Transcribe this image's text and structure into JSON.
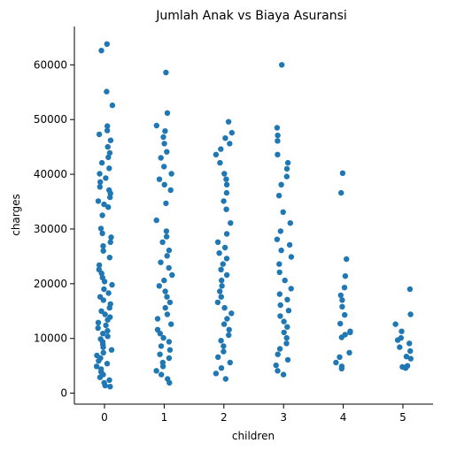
{
  "chart_data": {
    "type": "scatter",
    "title": "Jumlah Anak vs Biaya Asuransi",
    "xlabel": "children",
    "ylabel": "charges",
    "x_ticks": [
      "0",
      "1",
      "2",
      "3",
      "4",
      "5"
    ],
    "y_ticks": [
      "0",
      "10000",
      "20000",
      "30000",
      "40000",
      "50000",
      "60000"
    ],
    "ylim": [
      -2000,
      67000
    ],
    "grid": false,
    "point_color": "#1f77b4",
    "series": [
      {
        "values": [
          {
            "x": 0,
            "y": 63800
          },
          {
            "x": 0,
            "y": 62600
          },
          {
            "x": 0,
            "y": 55100
          },
          {
            "x": 0,
            "y": 52600
          },
          {
            "x": 0,
            "y": 48800
          },
          {
            "x": 0,
            "y": 48000
          },
          {
            "x": 0,
            "y": 47300
          },
          {
            "x": 0,
            "y": 46200
          },
          {
            "x": 0,
            "y": 45000
          },
          {
            "x": 0,
            "y": 43900
          },
          {
            "x": 0,
            "y": 43100
          },
          {
            "x": 0,
            "y": 42100
          },
          {
            "x": 0,
            "y": 41100
          },
          {
            "x": 0,
            "y": 40100
          },
          {
            "x": 0,
            "y": 39300
          },
          {
            "x": 0,
            "y": 38600
          },
          {
            "x": 0,
            "y": 37700
          },
          {
            "x": 0,
            "y": 37100
          },
          {
            "x": 0,
            "y": 36500
          },
          {
            "x": 0,
            "y": 35800
          },
          {
            "x": 0,
            "y": 35100
          },
          {
            "x": 0,
            "y": 34500
          },
          {
            "x": 0,
            "y": 34000
          },
          {
            "x": 0,
            "y": 32500
          },
          {
            "x": 0,
            "y": 30100
          },
          {
            "x": 0,
            "y": 29200
          },
          {
            "x": 0,
            "y": 28500
          },
          {
            "x": 0,
            "y": 27600
          },
          {
            "x": 0,
            "y": 26900
          },
          {
            "x": 0,
            "y": 26000
          },
          {
            "x": 0,
            "y": 24800
          },
          {
            "x": 0,
            "y": 23400
          },
          {
            "x": 0,
            "y": 22600
          },
          {
            "x": 0,
            "y": 21900
          },
          {
            "x": 0,
            "y": 21100
          },
          {
            "x": 0,
            "y": 20400
          },
          {
            "x": 0,
            "y": 19800
          },
          {
            "x": 0,
            "y": 19000
          },
          {
            "x": 0,
            "y": 18300
          },
          {
            "x": 0,
            "y": 17600
          },
          {
            "x": 0,
            "y": 17000
          },
          {
            "x": 0,
            "y": 16300
          },
          {
            "x": 0,
            "y": 15600
          },
          {
            "x": 0,
            "y": 15000
          },
          {
            "x": 0,
            "y": 14400
          },
          {
            "x": 0,
            "y": 13900
          },
          {
            "x": 0,
            "y": 13400
          },
          {
            "x": 0,
            "y": 12900
          },
          {
            "x": 0,
            "y": 12400
          },
          {
            "x": 0,
            "y": 11900
          },
          {
            "x": 0,
            "y": 11400
          },
          {
            "x": 0,
            "y": 10900
          },
          {
            "x": 0,
            "y": 10400
          },
          {
            "x": 0,
            "y": 9900
          },
          {
            "x": 0,
            "y": 9400
          },
          {
            "x": 0,
            "y": 8900
          },
          {
            "x": 0,
            "y": 8400
          },
          {
            "x": 0,
            "y": 7900
          },
          {
            "x": 0,
            "y": 7400
          },
          {
            "x": 0,
            "y": 6900
          },
          {
            "x": 0,
            "y": 6400
          },
          {
            "x": 0,
            "y": 5900
          },
          {
            "x": 0,
            "y": 5400
          },
          {
            "x": 0,
            "y": 4900
          },
          {
            "x": 0,
            "y": 4400
          },
          {
            "x": 0,
            "y": 3900
          },
          {
            "x": 0,
            "y": 3400
          },
          {
            "x": 0,
            "y": 2900
          },
          {
            "x": 0,
            "y": 2400
          },
          {
            "x": 0,
            "y": 1900
          },
          {
            "x": 0,
            "y": 1400
          },
          {
            "x": 0,
            "y": 1200
          },
          {
            "x": 1,
            "y": 58600
          },
          {
            "x": 1,
            "y": 51200
          },
          {
            "x": 1,
            "y": 48900
          },
          {
            "x": 1,
            "y": 47900
          },
          {
            "x": 1,
            "y": 46800
          },
          {
            "x": 1,
            "y": 45600
          },
          {
            "x": 1,
            "y": 44100
          },
          {
            "x": 1,
            "y": 43000
          },
          {
            "x": 1,
            "y": 41400
          },
          {
            "x": 1,
            "y": 40100
          },
          {
            "x": 1,
            "y": 39100
          },
          {
            "x": 1,
            "y": 38100
          },
          {
            "x": 1,
            "y": 37100
          },
          {
            "x": 1,
            "y": 34700
          },
          {
            "x": 1,
            "y": 31600
          },
          {
            "x": 1,
            "y": 29600
          },
          {
            "x": 1,
            "y": 28600
          },
          {
            "x": 1,
            "y": 27600
          },
          {
            "x": 1,
            "y": 26100
          },
          {
            "x": 1,
            "y": 25100
          },
          {
            "x": 1,
            "y": 23900
          },
          {
            "x": 1,
            "y": 22900
          },
          {
            "x": 1,
            "y": 21600
          },
          {
            "x": 1,
            "y": 20600
          },
          {
            "x": 1,
            "y": 19600
          },
          {
            "x": 1,
            "y": 18600
          },
          {
            "x": 1,
            "y": 17600
          },
          {
            "x": 1,
            "y": 16600
          },
          {
            "x": 1,
            "y": 15600
          },
          {
            "x": 1,
            "y": 14400
          },
          {
            "x": 1,
            "y": 13600
          },
          {
            "x": 1,
            "y": 12600
          },
          {
            "x": 1,
            "y": 11600
          },
          {
            "x": 1,
            "y": 10900
          },
          {
            "x": 1,
            "y": 10100
          },
          {
            "x": 1,
            "y": 9400
          },
          {
            "x": 1,
            "y": 8600
          },
          {
            "x": 1,
            "y": 7900
          },
          {
            "x": 1,
            "y": 7100
          },
          {
            "x": 1,
            "y": 6400
          },
          {
            "x": 1,
            "y": 5600
          },
          {
            "x": 1,
            "y": 4900
          },
          {
            "x": 1,
            "y": 4100
          },
          {
            "x": 1,
            "y": 3400
          },
          {
            "x": 1,
            "y": 2600
          },
          {
            "x": 1,
            "y": 1900
          },
          {
            "x": 2,
            "y": 49600
          },
          {
            "x": 2,
            "y": 47600
          },
          {
            "x": 2,
            "y": 46600
          },
          {
            "x": 2,
            "y": 45600
          },
          {
            "x": 2,
            "y": 44600
          },
          {
            "x": 2,
            "y": 43600
          },
          {
            "x": 2,
            "y": 42100
          },
          {
            "x": 2,
            "y": 40100
          },
          {
            "x": 2,
            "y": 39100
          },
          {
            "x": 2,
            "y": 38100
          },
          {
            "x": 2,
            "y": 36600
          },
          {
            "x": 2,
            "y": 35100
          },
          {
            "x": 2,
            "y": 33600
          },
          {
            "x": 2,
            "y": 31100
          },
          {
            "x": 2,
            "y": 29100
          },
          {
            "x": 2,
            "y": 27600
          },
          {
            "x": 2,
            "y": 26600
          },
          {
            "x": 2,
            "y": 25600
          },
          {
            "x": 2,
            "y": 24600
          },
          {
            "x": 2,
            "y": 23600
          },
          {
            "x": 2,
            "y": 22600
          },
          {
            "x": 2,
            "y": 21600
          },
          {
            "x": 2,
            "y": 20600
          },
          {
            "x": 2,
            "y": 19600
          },
          {
            "x": 2,
            "y": 18600
          },
          {
            "x": 2,
            "y": 17600
          },
          {
            "x": 2,
            "y": 16600
          },
          {
            "x": 2,
            "y": 15600
          },
          {
            "x": 2,
            "y": 14600
          },
          {
            "x": 2,
            "y": 13600
          },
          {
            "x": 2,
            "y": 12600
          },
          {
            "x": 2,
            "y": 11600
          },
          {
            "x": 2,
            "y": 10600
          },
          {
            "x": 2,
            "y": 9600
          },
          {
            "x": 2,
            "y": 8600
          },
          {
            "x": 2,
            "y": 7600
          },
          {
            "x": 2,
            "y": 6600
          },
          {
            "x": 2,
            "y": 5600
          },
          {
            "x": 2,
            "y": 4600
          },
          {
            "x": 2,
            "y": 3600
          },
          {
            "x": 2,
            "y": 2600
          },
          {
            "x": 3,
            "y": 60000
          },
          {
            "x": 3,
            "y": 48500
          },
          {
            "x": 3,
            "y": 47100
          },
          {
            "x": 3,
            "y": 46100
          },
          {
            "x": 3,
            "y": 43600
          },
          {
            "x": 3,
            "y": 42100
          },
          {
            "x": 3,
            "y": 41000
          },
          {
            "x": 3,
            "y": 39600
          },
          {
            "x": 3,
            "y": 38100
          },
          {
            "x": 3,
            "y": 36100
          },
          {
            "x": 3,
            "y": 33100
          },
          {
            "x": 3,
            "y": 31100
          },
          {
            "x": 3,
            "y": 29600
          },
          {
            "x": 3,
            "y": 28100
          },
          {
            "x": 3,
            "y": 27100
          },
          {
            "x": 3,
            "y": 26100
          },
          {
            "x": 3,
            "y": 24900
          },
          {
            "x": 3,
            "y": 23600
          },
          {
            "x": 3,
            "y": 22100
          },
          {
            "x": 3,
            "y": 20600
          },
          {
            "x": 3,
            "y": 19100
          },
          {
            "x": 3,
            "y": 18100
          },
          {
            "x": 3,
            "y": 17100
          },
          {
            "x": 3,
            "y": 16100
          },
          {
            "x": 3,
            "y": 15100
          },
          {
            "x": 3,
            "y": 14100
          },
          {
            "x": 3,
            "y": 13100
          },
          {
            "x": 3,
            "y": 12100
          },
          {
            "x": 3,
            "y": 11100
          },
          {
            "x": 3,
            "y": 10100
          },
          {
            "x": 3,
            "y": 9100
          },
          {
            "x": 3,
            "y": 8100
          },
          {
            "x": 3,
            "y": 7100
          },
          {
            "x": 3,
            "y": 6100
          },
          {
            "x": 3,
            "y": 5100
          },
          {
            "x": 3,
            "y": 4100
          },
          {
            "x": 3,
            "y": 3400
          },
          {
            "x": 4,
            "y": 40200
          },
          {
            "x": 4,
            "y": 36600
          },
          {
            "x": 4,
            "y": 24500
          },
          {
            "x": 4,
            "y": 21400
          },
          {
            "x": 4,
            "y": 19300
          },
          {
            "x": 4,
            "y": 17900
          },
          {
            "x": 4,
            "y": 17000
          },
          {
            "x": 4,
            "y": 15800
          },
          {
            "x": 4,
            "y": 14300
          },
          {
            "x": 4,
            "y": 12700
          },
          {
            "x": 4,
            "y": 11300
          },
          {
            "x": 4,
            "y": 11100
          },
          {
            "x": 4,
            "y": 10700
          },
          {
            "x": 4,
            "y": 10200
          },
          {
            "x": 4,
            "y": 7400
          },
          {
            "x": 4,
            "y": 6600
          },
          {
            "x": 4,
            "y": 5600
          },
          {
            "x": 4,
            "y": 4900
          },
          {
            "x": 4,
            "y": 4500
          },
          {
            "x": 5,
            "y": 19000
          },
          {
            "x": 5,
            "y": 14400
          },
          {
            "x": 5,
            "y": 12600
          },
          {
            "x": 5,
            "y": 11300
          },
          {
            "x": 5,
            "y": 10100
          },
          {
            "x": 5,
            "y": 9700
          },
          {
            "x": 5,
            "y": 9100
          },
          {
            "x": 5,
            "y": 8400
          },
          {
            "x": 5,
            "y": 7700
          },
          {
            "x": 5,
            "y": 6700
          },
          {
            "x": 5,
            "y": 6300
          },
          {
            "x": 5,
            "y": 5000
          },
          {
            "x": 5,
            "y": 4800
          },
          {
            "x": 5,
            "y": 4600
          }
        ]
      }
    ]
  }
}
